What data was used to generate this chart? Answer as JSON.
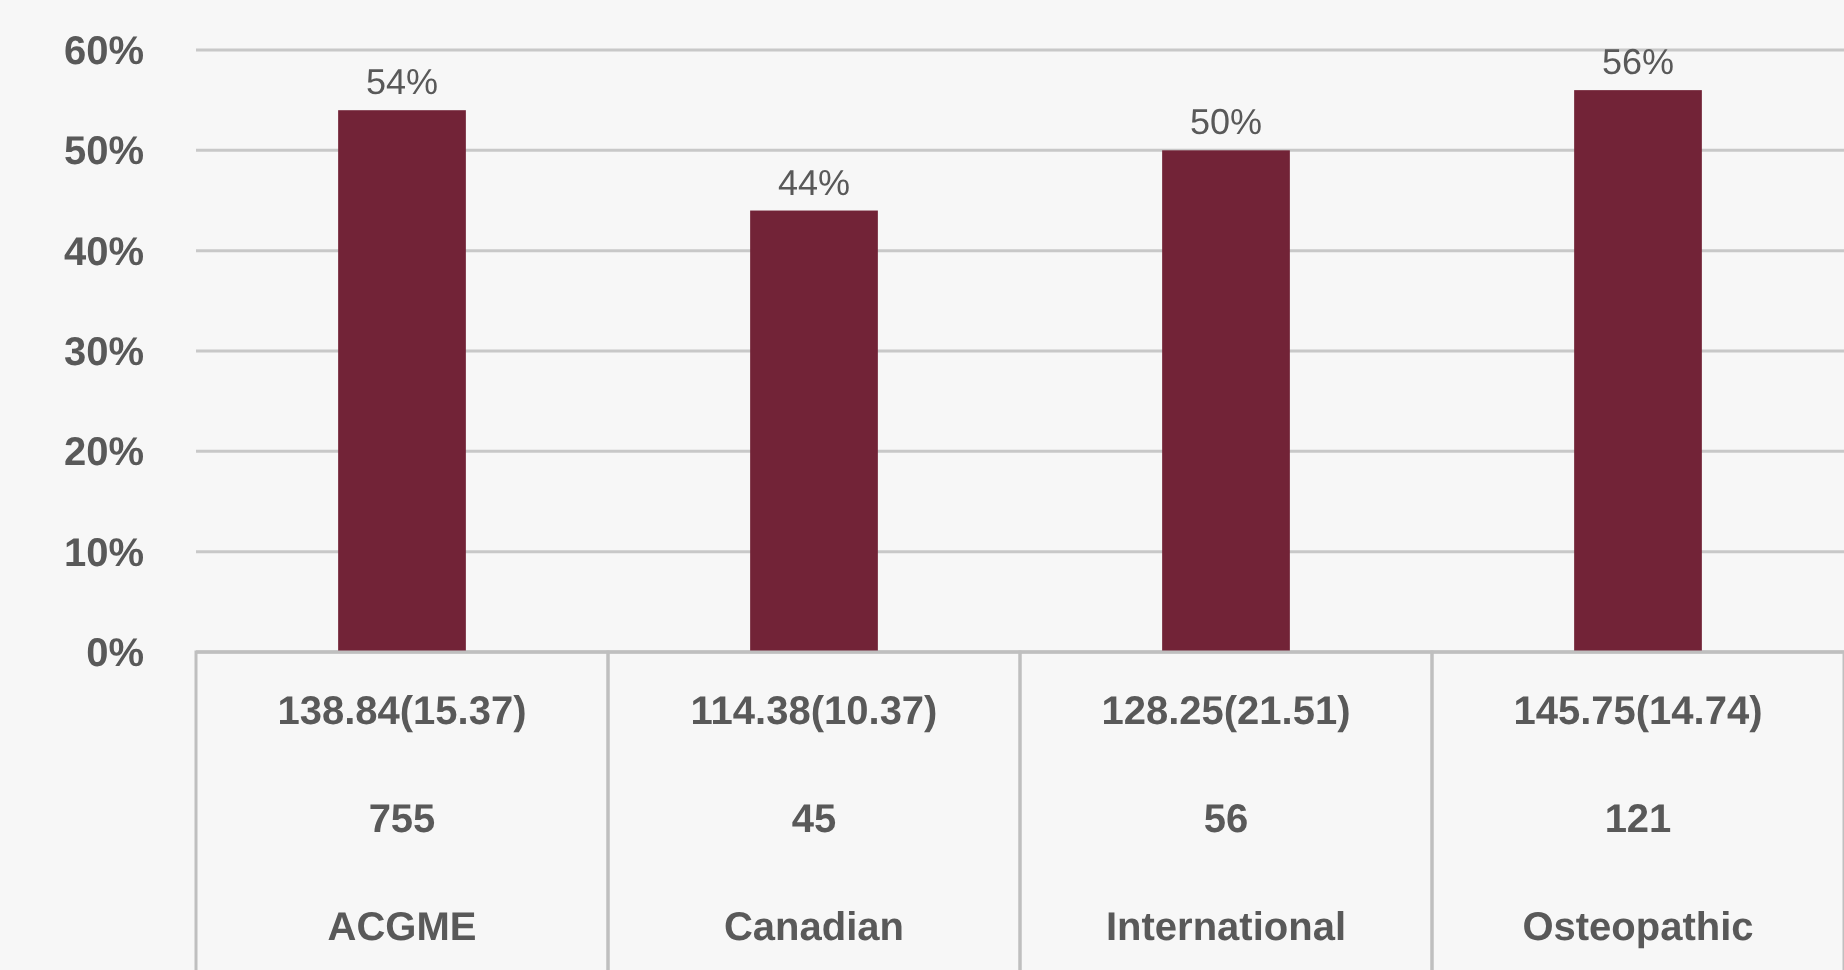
{
  "chart_data": {
    "type": "bar",
    "categories": [
      "138.84(15.37)\n755\nACGME",
      "114.38(10.37)\n45\nCanadian",
      "128.25(21.51)\n56\nInternational",
      "145.75(14.74)\n121\nOsteopathic"
    ],
    "values": [
      54,
      44,
      50,
      56
    ],
    "value_labels": [
      "54%",
      "44%",
      "50%",
      "56%"
    ],
    "color": "#722337",
    "ylim": [
      0,
      60
    ],
    "yticks": [
      {
        "value": 0,
        "label": "0%"
      },
      {
        "value": 10,
        "label": "10%"
      },
      {
        "value": 20,
        "label": "20%"
      },
      {
        "value": 30,
        "label": "30%"
      },
      {
        "value": 40,
        "label": "40%"
      },
      {
        "value": 50,
        "label": "50%"
      },
      {
        "value": 60,
        "label": "60%"
      }
    ],
    "grid": "y"
  }
}
